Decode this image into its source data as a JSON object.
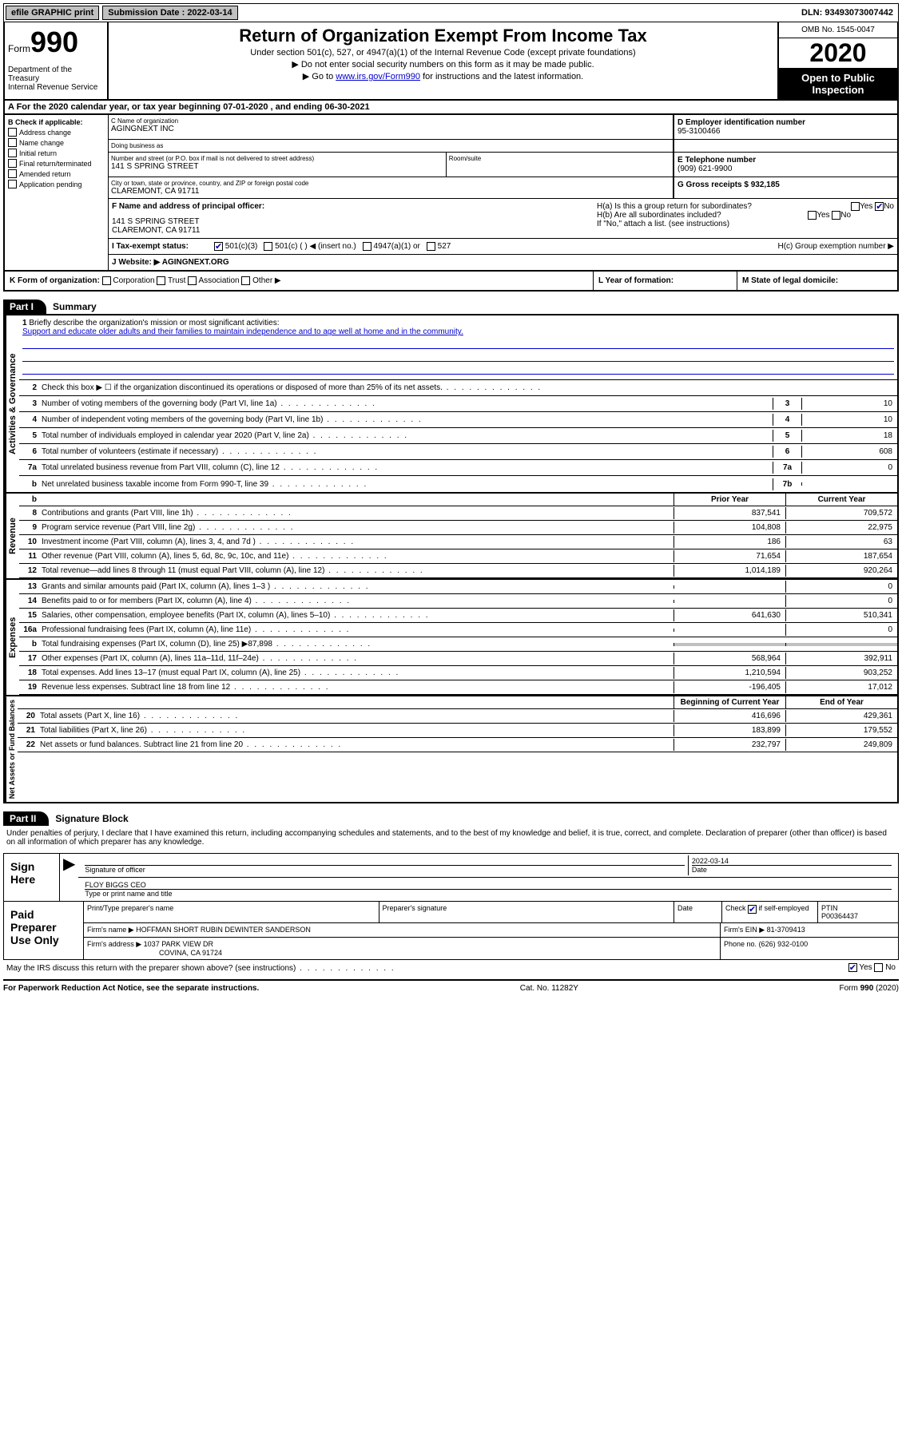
{
  "topbar": {
    "efile": "efile GRAPHIC print",
    "subdate_label": "Submission Date : 2022-03-14",
    "dln": "DLN: 93493073007442"
  },
  "header": {
    "form_word": "Form",
    "form_no": "990",
    "title": "Return of Organization Exempt From Income Tax",
    "sub1": "Under section 501(c), 527, or 4947(a)(1) of the Internal Revenue Code (except private foundations)",
    "sub2": "▶ Do not enter social security numbers on this form as it may be made public.",
    "sub3_pre": "▶ Go to ",
    "sub3_link": "www.irs.gov/Form990",
    "sub3_post": " for instructions and the latest information.",
    "dept": "Department of the Treasury\nInternal Revenue Service",
    "omb": "OMB No. 1545-0047",
    "year": "2020",
    "open": "Open to Public Inspection"
  },
  "taxyear": "A For the 2020 calendar year, or tax year beginning 07-01-2020    , and ending 06-30-2021",
  "box_b": {
    "title": "B Check if applicable:",
    "items": [
      "Address change",
      "Name change",
      "Initial return",
      "Final return/terminated",
      "Amended return",
      "Application pending"
    ]
  },
  "box_c": {
    "name_label": "C Name of organization",
    "name": "AGINGNEXT INC",
    "dba_label": "Doing business as",
    "addr_label": "Number and street (or P.O. box if mail is not delivered to street address)",
    "room_label": "Room/suite",
    "addr": "141 S SPRING STREET",
    "city_label": "City or town, state or province, country, and ZIP or foreign postal code",
    "city": "CLAREMONT, CA  91711"
  },
  "box_d": {
    "label": "D Employer identification number",
    "val": "95-3100466"
  },
  "box_e": {
    "label": "E Telephone number",
    "val": "(909) 621-9900"
  },
  "box_g": {
    "label": "G Gross receipts $ 932,185"
  },
  "box_f": {
    "label": "F Name and address of principal officer:",
    "addr1": "141 S SPRING STREET",
    "addr2": "CLAREMONT, CA  91711"
  },
  "box_h": {
    "ha": "H(a)  Is this a group return for subordinates?",
    "hb": "H(b)  Are all subordinates included?",
    "hnote": "If \"No,\" attach a list. (see instructions)",
    "hc": "H(c)  Group exemption number ▶",
    "yes": "Yes",
    "no": "No"
  },
  "tax_status": {
    "label": "I    Tax-exempt status:",
    "opts": [
      "501(c)(3)",
      "501(c) (   ) ◀ (insert no.)",
      "4947(a)(1) or",
      "527"
    ]
  },
  "website": {
    "label": "J    Website: ▶",
    "val": "AGINGNEXT.ORG"
  },
  "klm": {
    "k": "K Form of organization:",
    "k_opts": [
      "Corporation",
      "Trust",
      "Association",
      "Other ▶"
    ],
    "l": "L Year of formation:",
    "m": "M State of legal domicile:"
  },
  "part1": {
    "badge": "Part I",
    "title": "Summary"
  },
  "mission": {
    "num": "1",
    "label": "Briefly describe the organization's mission or most significant activities:",
    "text": "Support and educate older adults and their families to maintain independence and to age well at home and in the community."
  },
  "gov_lines": [
    {
      "n": "2",
      "t": "Check this box ▶ ☐  if the organization discontinued its operations or disposed of more than 25% of its net assets.",
      "box": "",
      "val": ""
    },
    {
      "n": "3",
      "t": "Number of voting members of the governing body (Part VI, line 1a)",
      "box": "3",
      "val": "10"
    },
    {
      "n": "4",
      "t": "Number of independent voting members of the governing body (Part VI, line 1b)",
      "box": "4",
      "val": "10"
    },
    {
      "n": "5",
      "t": "Total number of individuals employed in calendar year 2020 (Part V, line 2a)",
      "box": "5",
      "val": "18"
    },
    {
      "n": "6",
      "t": "Total number of volunteers (estimate if necessary)",
      "box": "6",
      "val": "608"
    },
    {
      "n": "7a",
      "t": "Total unrelated business revenue from Part VIII, column (C), line 12",
      "box": "7a",
      "val": "0"
    },
    {
      "n": "b",
      "t": "Net unrelated business taxable income from Form 990-T, line 39",
      "box": "7b",
      "val": ""
    }
  ],
  "col_headers": {
    "prior": "Prior Year",
    "current": "Current Year",
    "boy": "Beginning of Current Year",
    "eoy": "End of Year"
  },
  "rev_lines": [
    {
      "n": "8",
      "t": "Contributions and grants (Part VIII, line 1h)",
      "v1": "837,541",
      "v2": "709,572"
    },
    {
      "n": "9",
      "t": "Program service revenue (Part VIII, line 2g)",
      "v1": "104,808",
      "v2": "22,975"
    },
    {
      "n": "10",
      "t": "Investment income (Part VIII, column (A), lines 3, 4, and 7d )",
      "v1": "186",
      "v2": "63"
    },
    {
      "n": "11",
      "t": "Other revenue (Part VIII, column (A), lines 5, 6d, 8c, 9c, 10c, and 11e)",
      "v1": "71,654",
      "v2": "187,654"
    },
    {
      "n": "12",
      "t": "Total revenue—add lines 8 through 11 (must equal Part VIII, column (A), line 12)",
      "v1": "1,014,189",
      "v2": "920,264"
    }
  ],
  "exp_lines": [
    {
      "n": "13",
      "t": "Grants and similar amounts paid (Part IX, column (A), lines 1–3 )",
      "v1": "",
      "v2": "0"
    },
    {
      "n": "14",
      "t": "Benefits paid to or for members (Part IX, column (A), line 4)",
      "v1": "",
      "v2": "0"
    },
    {
      "n": "15",
      "t": "Salaries, other compensation, employee benefits (Part IX, column (A), lines 5–10)",
      "v1": "641,630",
      "v2": "510,341"
    },
    {
      "n": "16a",
      "t": "Professional fundraising fees (Part IX, column (A), line 11e)",
      "v1": "",
      "v2": "0"
    },
    {
      "n": "b",
      "t": "Total fundraising expenses (Part IX, column (D), line 25) ▶87,898",
      "v1": "shaded",
      "v2": "shaded"
    },
    {
      "n": "17",
      "t": "Other expenses (Part IX, column (A), lines 11a–11d, 11f–24e)",
      "v1": "568,964",
      "v2": "392,911"
    },
    {
      "n": "18",
      "t": "Total expenses. Add lines 13–17 (must equal Part IX, column (A), line 25)",
      "v1": "1,210,594",
      "v2": "903,252"
    },
    {
      "n": "19",
      "t": "Revenue less expenses. Subtract line 18 from line 12",
      "v1": "-196,405",
      "v2": "17,012"
    }
  ],
  "na_lines": [
    {
      "n": "20",
      "t": "Total assets (Part X, line 16)",
      "v1": "416,696",
      "v2": "429,361"
    },
    {
      "n": "21",
      "t": "Total liabilities (Part X, line 26)",
      "v1": "183,899",
      "v2": "179,552"
    },
    {
      "n": "22",
      "t": "Net assets or fund balances. Subtract line 21 from line 20",
      "v1": "232,797",
      "v2": "249,809"
    }
  ],
  "sidebar": {
    "gov": "Activities & Governance",
    "rev": "Revenue",
    "exp": "Expenses",
    "na": "Net Assets or Fund Balances"
  },
  "part2": {
    "badge": "Part II",
    "title": "Signature Block"
  },
  "sig_intro": "Under penalties of perjury, I declare that I have examined this return, including accompanying schedules and statements, and to the best of my knowledge and belief, it is true, correct, and complete. Declaration of preparer (other than officer) is based on all information of which preparer has any knowledge.",
  "sign": {
    "here": "Sign Here",
    "sig_label": "Signature of officer",
    "date_label": "Date",
    "date": "2022-03-14",
    "name": "FLOY BIGGS CEO",
    "name_label": "Type or print name and title"
  },
  "prep": {
    "label": "Paid Preparer Use Only",
    "h1": "Print/Type preparer's name",
    "h2": "Preparer's signature",
    "h3": "Date",
    "h4_pre": "Check",
    "h4_post": "if self-employed",
    "h5": "PTIN",
    "ptin": "P00364437",
    "firm_label": "Firm's name    ▶",
    "firm": "HOFFMAN SHORT RUBIN DEWINTER SANDERSON",
    "ein_label": "Firm's EIN ▶",
    "ein": "81-3709413",
    "addr_label": "Firm's address ▶",
    "addr1": "1037 PARK VIEW DR",
    "addr2": "COVINA, CA  91724",
    "phone_label": "Phone no.",
    "phone": "(626) 932-0100"
  },
  "discuss": "May the IRS discuss this return with the preparer shown above? (see instructions)",
  "footer": {
    "left": "For Paperwork Reduction Act Notice, see the separate instructions.",
    "mid": "Cat. No. 11282Y",
    "right": "Form 990 (2020)"
  }
}
